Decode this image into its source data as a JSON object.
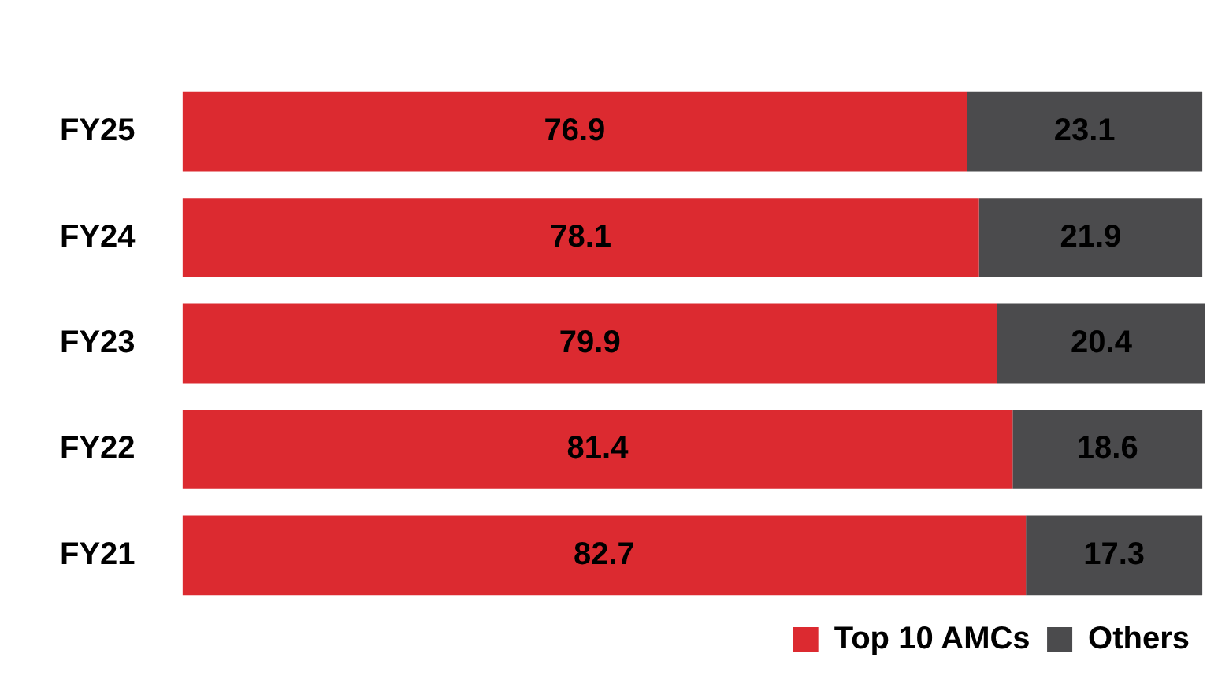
{
  "chart_data": {
    "type": "bar",
    "orientation": "horizontal",
    "stacked": true,
    "data_labels": true,
    "legend": "bottom right",
    "grid": false,
    "tick_labels": "y",
    "categories": [
      "FY25",
      "FY24",
      "FY23",
      "FY22",
      "FY21"
    ],
    "series": [
      {
        "name": "Top 10 AMCs",
        "color": "#dc2a30",
        "values": [
          76.9,
          78.1,
          79.9,
          81.4,
          82.7
        ]
      },
      {
        "name": "Others",
        "color": "#4b4b4d",
        "values": [
          23.1,
          21.9,
          20.4,
          18.6,
          17.3
        ]
      }
    ]
  }
}
